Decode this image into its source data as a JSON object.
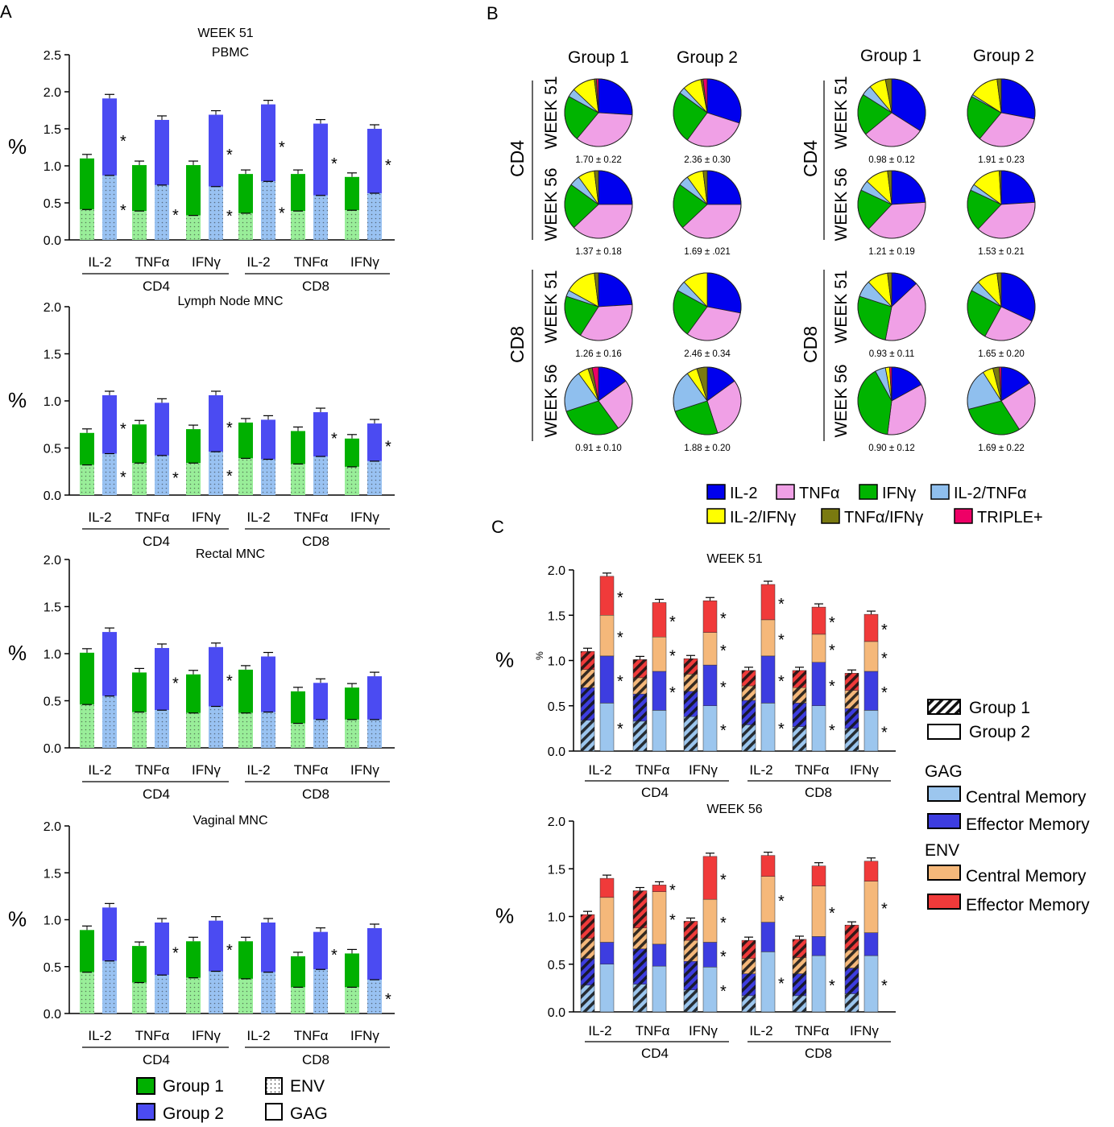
{
  "panel_labels": {
    "a": "A",
    "b": "B",
    "c": "C"
  },
  "colors": {
    "group1": "#00b000",
    "group1_light": "#99ee99",
    "group2": "#4b4bf2",
    "group2_light": "#99c2f2",
    "il2": "#0000ee",
    "tnfa": "#f0a0e6",
    "ifng": "#00b400",
    "il2_tnfa": "#8fbfee",
    "il2_ifng": "#ffff00",
    "tnfa_ifng": "#7a7a10",
    "triple": "#ee0066",
    "gag_cm": "#9cc6ee",
    "gag_em": "#3d3de0",
    "env_cm": "#f5b87a",
    "env_em": "#f03a3a"
  },
  "panel_a": {
    "superhead": "WEEK 51",
    "cytokines": [
      "IL-2",
      "TNFα",
      "IFNγ",
      "IL-2",
      "TNFα",
      "IFNγ"
    ],
    "cell_types": [
      "CD4",
      "CD8"
    ],
    "ylabel": "%",
    "charts": [
      {
        "title": "PBMC",
        "ylim": [
          0,
          2.5
        ],
        "ticks": [
          "0.0",
          "0.5",
          "1.0",
          "1.5",
          "2.0",
          "2.5"
        ],
        "g1_total": [
          1.1,
          1.01,
          1.01,
          0.89,
          0.89,
          0.85
        ],
        "g1_env": [
          0.41,
          0.39,
          0.33,
          0.36,
          0.39,
          0.4
        ],
        "g2_total": [
          1.91,
          1.62,
          1.69,
          1.83,
          1.57,
          1.5
        ],
        "g2_env": [
          0.87,
          0.74,
          0.72,
          0.79,
          0.6,
          0.63
        ],
        "star_upper": [
          "*",
          "",
          "*",
          "*",
          "*",
          "*"
        ],
        "star_lower": [
          "*",
          "*",
          "*",
          "*",
          "",
          ""
        ]
      },
      {
        "title": "Lymph Node MNC",
        "ylim": [
          0,
          2.0
        ],
        "ticks": [
          "0.0",
          "0.5",
          "1.0",
          "1.5",
          "2.0"
        ],
        "g1_total": [
          0.66,
          0.75,
          0.7,
          0.77,
          0.68,
          0.6
        ],
        "g1_env": [
          0.32,
          0.34,
          0.34,
          0.39,
          0.33,
          0.3
        ],
        "g2_total": [
          1.06,
          0.98,
          1.06,
          0.8,
          0.88,
          0.76
        ],
        "g2_env": [
          0.44,
          0.42,
          0.46,
          0.38,
          0.41,
          0.36
        ],
        "star_upper": [
          "*",
          "",
          "*",
          "",
          "*",
          "*"
        ],
        "star_lower": [
          "*",
          "*",
          "*",
          "",
          "",
          ""
        ]
      },
      {
        "title": "Rectal MNC",
        "ylim": [
          0,
          2.0
        ],
        "ticks": [
          "0.0",
          "0.5",
          "1.0",
          "1.5",
          "2.0"
        ],
        "g1_total": [
          1.01,
          0.8,
          0.78,
          0.83,
          0.6,
          0.64
        ],
        "g1_env": [
          0.46,
          0.38,
          0.37,
          0.37,
          0.26,
          0.3
        ],
        "g2_total": [
          1.23,
          1.06,
          1.07,
          0.97,
          0.69,
          0.76
        ],
        "g2_env": [
          0.55,
          0.4,
          0.44,
          0.38,
          0.3,
          0.3
        ],
        "star_upper": [
          "",
          "*",
          "*",
          "",
          "",
          ""
        ],
        "star_lower": [
          "",
          "",
          "",
          "",
          "",
          ""
        ]
      },
      {
        "title": "Vaginal MNC",
        "ylim": [
          0,
          2.0
        ],
        "ticks": [
          "0.0",
          "0.5",
          "1.0",
          "1.5",
          "2.0"
        ],
        "g1_total": [
          0.89,
          0.72,
          0.77,
          0.77,
          0.61,
          0.64
        ],
        "g1_env": [
          0.44,
          0.33,
          0.38,
          0.37,
          0.28,
          0.28
        ],
        "g2_total": [
          1.13,
          0.97,
          0.99,
          0.97,
          0.87,
          0.91
        ],
        "g2_env": [
          0.56,
          0.41,
          0.45,
          0.44,
          0.47,
          0.36
        ],
        "star_upper": [
          "",
          "*",
          "*",
          "",
          "*",
          ""
        ],
        "star_lower": [
          "",
          "",
          "",
          "",
          "",
          "*"
        ]
      }
    ],
    "legend": {
      "group1": "Group 1",
      "group2": "Group 2",
      "env": "ENV",
      "gag": "GAG"
    }
  },
  "panel_b": {
    "col_headers": [
      "Group 1",
      "Group 2",
      "Group 1",
      "Group 2"
    ],
    "row_headers": [
      "WEEK 51",
      "WEEK 56",
      "WEEK 51",
      "WEEK 56"
    ],
    "cell_headers": [
      "CD4",
      "CD8",
      "CD4",
      "CD8"
    ],
    "pie_labels": [
      [
        "1.70 ± 0.22",
        "2.36 ± 0.30",
        "0.98 ± 0.12",
        "1.91 ± 0.23"
      ],
      [
        "1.37 ± 0.18",
        "1.69 ± .021",
        "1.21 ± 0.19",
        "1.53 ± 0.21"
      ],
      [
        "1.26 ± 0.16",
        "2.46 ± 0.34",
        "0.93 ± 0.11",
        "1.65 ± 0.20"
      ],
      [
        "0.91 ± 0.10",
        "1.88 ± 0.20",
        "0.90 ± 0.12",
        "1.69 ± 0.22"
      ]
    ],
    "pies": [
      [
        [
          26,
          35,
          22,
          4,
          11,
          1,
          1
        ],
        [
          30,
          30,
          25,
          3,
          9,
          1,
          2
        ],
        [
          34,
          30,
          20,
          5,
          8,
          3,
          0
        ],
        [
          28,
          33,
          22,
          1,
          14,
          2,
          0
        ]
      ],
      [
        [
          25,
          38,
          22,
          5,
          8,
          2,
          0
        ],
        [
          25,
          38,
          22,
          5,
          8,
          2,
          0
        ],
        [
          24,
          38,
          20,
          5,
          11,
          2,
          0
        ],
        [
          24,
          38,
          20,
          3,
          14,
          1,
          0
        ]
      ],
      [
        [
          24,
          35,
          21,
          3,
          15,
          2,
          0
        ],
        [
          28,
          32,
          23,
          5,
          12,
          0,
          0
        ],
        [
          13,
          40,
          27,
          8,
          10,
          2,
          0
        ],
        [
          32,
          26,
          25,
          5,
          10,
          2,
          0
        ]
      ],
      [
        [
          15,
          25,
          30,
          20,
          5,
          2,
          3
        ],
        [
          15,
          30,
          25,
          20,
          5,
          5,
          0
        ],
        [
          17,
          35,
          40,
          5,
          2,
          0,
          1
        ],
        [
          16,
          25,
          30,
          20,
          5,
          3,
          1
        ]
      ]
    ],
    "legend": [
      "IL-2",
      "TNFα",
      "IFNγ",
      "IL-2/TNFα",
      "IL-2/IFNγ",
      "TNFα/IFNγ",
      "TRIPLE+"
    ]
  },
  "panel_c": {
    "cytokines": [
      "IL-2",
      "TNFα",
      "IFNγ",
      "IL-2",
      "TNFα",
      "IFNγ"
    ],
    "cell_types": [
      "CD4",
      "CD8"
    ],
    "ylabel": "%",
    "ylabel_small": "%",
    "ticks": [
      "0.0",
      "0.5",
      "1.0",
      "1.5",
      "2.0"
    ],
    "charts": [
      {
        "title": "WEEK 51",
        "g1": [
          [
            0.34,
            0.36,
            0.2,
            0.2
          ],
          [
            0.33,
            0.3,
            0.18,
            0.2
          ],
          [
            0.38,
            0.28,
            0.19,
            0.17
          ],
          [
            0.29,
            0.27,
            0.16,
            0.17
          ],
          [
            0.27,
            0.26,
            0.17,
            0.19
          ],
          [
            0.25,
            0.22,
            0.2,
            0.19
          ]
        ],
        "g2": [
          [
            0.53,
            0.52,
            0.45,
            0.43
          ],
          [
            0.45,
            0.43,
            0.38,
            0.38
          ],
          [
            0.5,
            0.45,
            0.36,
            0.35
          ],
          [
            0.53,
            0.52,
            0.4,
            0.39
          ],
          [
            0.5,
            0.48,
            0.31,
            0.3
          ],
          [
            0.45,
            0.43,
            0.33,
            0.3
          ]
        ],
        "stars": [
          [
            "*",
            "*",
            "*",
            "*"
          ],
          [
            "",
            "*",
            "*",
            "*"
          ],
          [
            "*",
            "*",
            "*",
            "*"
          ],
          [
            "*",
            "*",
            "*",
            "*"
          ],
          [
            "*",
            "*",
            "*",
            "*"
          ],
          [
            "*",
            "*",
            "*",
            "*"
          ]
        ]
      },
      {
        "title": "WEEK 56",
        "g1": [
          [
            0.28,
            0.28,
            0.21,
            0.25
          ],
          [
            0.29,
            0.37,
            0.22,
            0.39
          ],
          [
            0.23,
            0.3,
            0.22,
            0.2
          ],
          [
            0.17,
            0.23,
            0.16,
            0.19
          ],
          [
            0.17,
            0.23,
            0.17,
            0.19
          ],
          [
            0.19,
            0.27,
            0.19,
            0.26
          ]
        ],
        "g2": [
          [
            0.5,
            0.23,
            0.47,
            0.2
          ],
          [
            0.48,
            0.23,
            0.55,
            0.07
          ],
          [
            0.47,
            0.26,
            0.45,
            0.45
          ],
          [
            0.63,
            0.31,
            0.48,
            0.22
          ],
          [
            0.59,
            0.2,
            0.53,
            0.21
          ],
          [
            0.59,
            0.24,
            0.54,
            0.21
          ]
        ],
        "stars": [
          [
            "",
            "",
            "",
            ""
          ],
          [
            "",
            "",
            "*",
            "*"
          ],
          [
            "*",
            "*",
            "*",
            "*"
          ],
          [
            "*",
            "",
            "*",
            ""
          ],
          [
            "*",
            "",
            "*",
            ""
          ],
          [
            "*",
            "",
            "*",
            ""
          ]
        ]
      }
    ],
    "legend": {
      "group1": "Group 1",
      "group2": "Group 2",
      "gag": "GAG",
      "env": "ENV",
      "central_memory": "Central Memory",
      "effector_memory": "Effector Memory"
    }
  }
}
